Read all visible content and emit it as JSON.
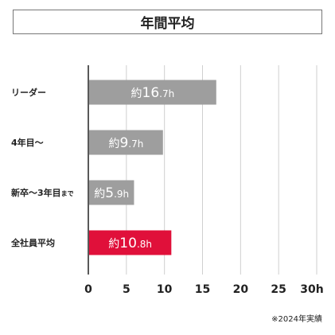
{
  "chart_data": {
    "type": "bar",
    "orientation": "horizontal",
    "title": "年間平均",
    "categories": [
      {
        "main": "リーダー",
        "suffix": ""
      },
      {
        "main": "4年目〜",
        "suffix": ""
      },
      {
        "main": "新卒〜3年目",
        "suffix": "まで"
      },
      {
        "main": "全社員平均",
        "suffix": ""
      }
    ],
    "values": [
      16.7,
      9.7,
      5.9,
      10.8
    ],
    "bar_label_prefix": "約",
    "bar_label_unit": "h",
    "bar_colors": [
      "#9e9e9e",
      "#9e9e9e",
      "#9e9e9e",
      "#e0103a"
    ],
    "xlim": [
      0,
      30
    ],
    "x_ticks": [
      "0",
      "5",
      "10",
      "15",
      "20",
      "25",
      "30h"
    ],
    "grid": true,
    "footnote": "※2024年実績"
  }
}
